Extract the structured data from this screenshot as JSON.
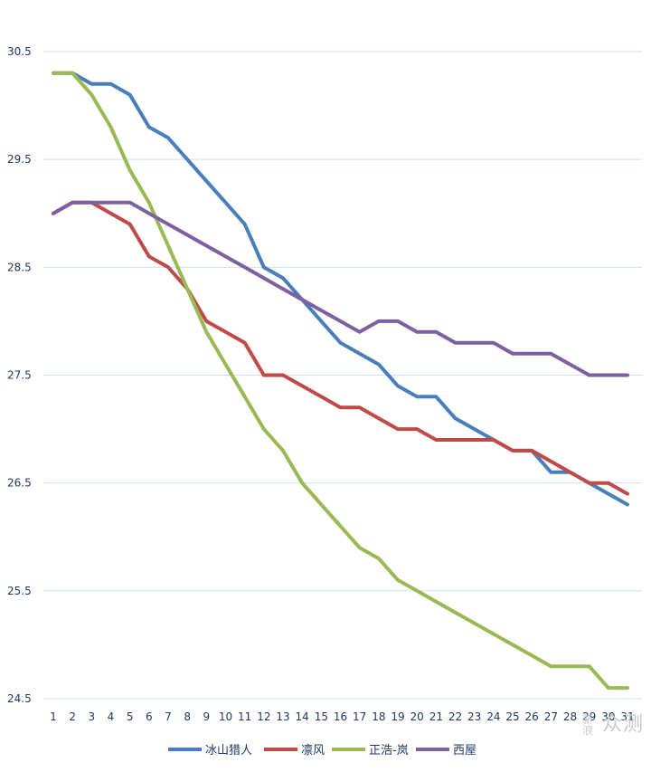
{
  "chart_data": {
    "type": "line",
    "categories": [
      "1",
      "2",
      "3",
      "4",
      "5",
      "6",
      "7",
      "8",
      "9",
      "10",
      "11",
      "12",
      "13",
      "14",
      "15",
      "16",
      "17",
      "18",
      "19",
      "20",
      "21",
      "22",
      "23",
      "24",
      "25",
      "26",
      "27",
      "28",
      "29",
      "30",
      "31"
    ],
    "ylim": [
      24.5,
      30.5
    ],
    "yticks": [
      "24.5",
      "25.5",
      "26.5",
      "27.5",
      "28.5",
      "29.5",
      "30.5"
    ],
    "grid": true,
    "legend_position": "bottom",
    "series": [
      {
        "name": "冰山猎人",
        "color": "#4a7ebb",
        "values": [
          30.3,
          30.3,
          30.2,
          30.2,
          30.1,
          29.8,
          29.7,
          29.5,
          29.3,
          29.1,
          28.9,
          28.5,
          28.4,
          28.2,
          28.0,
          27.8,
          27.7,
          27.6,
          27.4,
          27.3,
          27.3,
          27.1,
          27.0,
          26.9,
          26.8,
          26.8,
          26.6,
          26.6,
          26.5,
          26.4,
          26.3
        ]
      },
      {
        "name": "凛风",
        "color": "#be4b48",
        "values": [
          29.0,
          29.1,
          29.1,
          29.0,
          28.9,
          28.6,
          28.5,
          28.3,
          28.0,
          27.9,
          27.8,
          27.5,
          27.5,
          27.4,
          27.3,
          27.2,
          27.2,
          27.1,
          27.0,
          27.0,
          26.9,
          26.9,
          26.9,
          26.9,
          26.8,
          26.8,
          26.7,
          26.6,
          26.5,
          26.5,
          26.4
        ]
      },
      {
        "name": "正浩-岚",
        "color": "#98b954",
        "values": [
          30.3,
          30.3,
          30.1,
          29.8,
          29.4,
          29.1,
          28.7,
          28.3,
          27.9,
          27.6,
          27.3,
          27.0,
          26.8,
          26.5,
          26.3,
          26.1,
          25.9,
          25.8,
          25.6,
          25.5,
          25.4,
          25.3,
          25.2,
          25.1,
          25.0,
          24.9,
          24.8,
          24.8,
          24.8,
          24.6,
          24.6
        ]
      },
      {
        "name": "西屋",
        "color": "#7d60a0",
        "values": [
          29.0,
          29.1,
          29.1,
          29.1,
          29.1,
          29.0,
          28.9,
          28.8,
          28.7,
          28.6,
          28.5,
          28.4,
          28.3,
          28.2,
          28.1,
          28.0,
          27.9,
          28.0,
          28.0,
          27.9,
          27.9,
          27.8,
          27.8,
          27.8,
          27.7,
          27.7,
          27.7,
          27.6,
          27.5,
          27.5,
          27.5
        ]
      }
    ]
  },
  "watermark": {
    "line1": "新",
    "line2": "浪",
    "text": "众测"
  }
}
